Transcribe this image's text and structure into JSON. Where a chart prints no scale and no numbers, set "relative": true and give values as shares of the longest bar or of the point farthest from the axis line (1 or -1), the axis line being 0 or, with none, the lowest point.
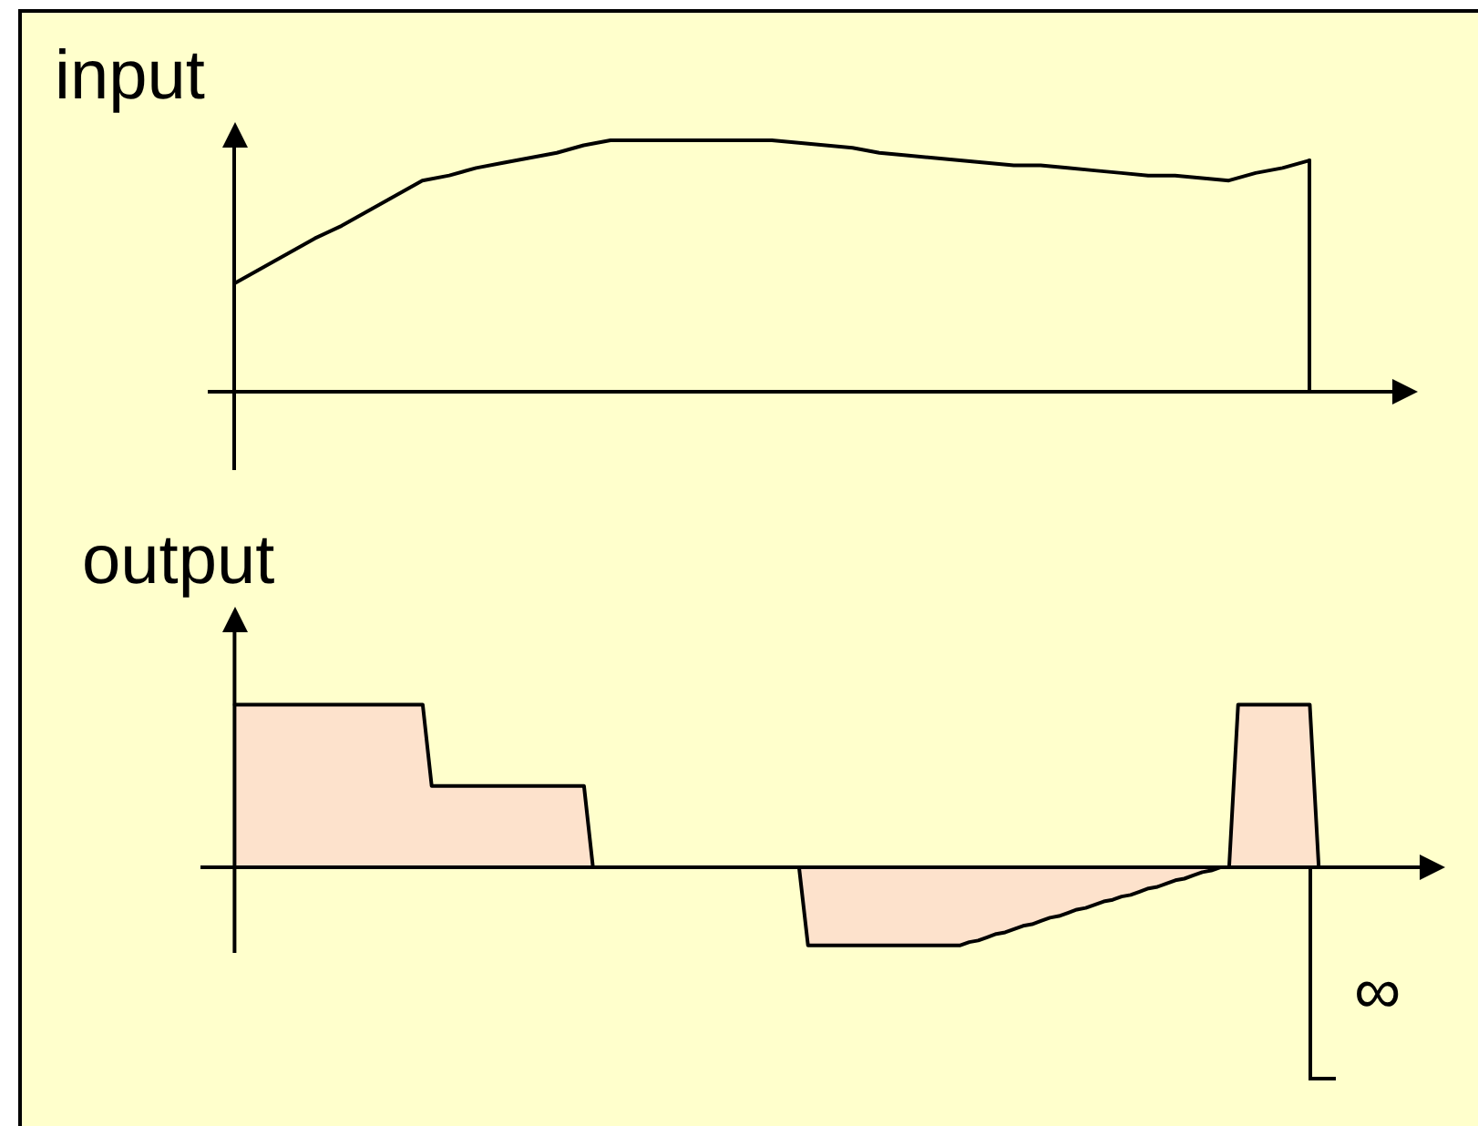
{
  "chart_data": [
    {
      "type": "line",
      "title": "input",
      "relative": true,
      "categories": [
        null,
        null,
        null,
        null,
        null,
        null,
        null,
        null,
        null,
        null,
        null,
        null,
        null,
        null,
        null,
        null,
        null,
        null,
        null,
        null,
        null,
        null,
        null,
        null,
        null,
        null,
        null,
        null,
        null,
        null,
        null,
        null,
        null,
        null,
        null,
        null,
        null,
        null,
        null,
        null,
        null,
        null
      ],
      "series": [
        {
          "color": "#000000",
          "values": [
            0.43,
            0.49,
            0.55,
            0.61,
            0.66,
            0.72,
            0.78,
            0.84,
            0.86,
            0.89,
            0.91,
            0.93,
            0.95,
            0.98,
            1,
            1,
            1,
            1,
            1,
            1,
            1,
            0.99,
            0.98,
            0.97,
            0.95,
            0.94,
            0.93,
            0.92,
            0.91,
            0.9,
            0.9,
            0.89,
            0.88,
            0.87,
            0.86,
            0.86,
            0.85,
            0.84,
            0.87,
            0.89,
            0.92,
            null
          ]
        },
        {
          "type": "step",
          "color": "#000000",
          "values": [
            null,
            null,
            null,
            null,
            null,
            null,
            null,
            null,
            null,
            null,
            null,
            null,
            null,
            null,
            null,
            null,
            null,
            null,
            null,
            null,
            null,
            null,
            null,
            null,
            null,
            null,
            null,
            null,
            null,
            null,
            null,
            null,
            null,
            null,
            null,
            null,
            null,
            null,
            null,
            null,
            0.92,
            0
          ]
        }
      ]
    },
    {
      "type": "area",
      "title": "output",
      "relative": true,
      "annotations": [
        "∞"
      ],
      "categories": [
        null,
        null,
        null,
        null,
        null,
        null,
        null,
        null,
        null,
        null,
        null,
        null,
        null,
        null,
        null,
        null,
        null,
        null,
        null,
        null,
        null,
        null,
        null,
        null,
        null,
        null,
        null,
        null,
        null,
        null,
        null,
        null,
        null,
        null,
        null,
        null,
        null,
        null,
        null,
        null,
        null,
        null,
        null,
        null,
        null,
        null,
        null,
        null,
        null,
        null,
        null,
        null,
        null,
        null,
        null,
        null,
        null,
        null,
        null,
        null,
        null,
        null,
        null,
        null,
        null,
        null,
        null,
        null,
        null,
        null,
        null,
        null,
        null,
        null,
        null,
        null,
        null,
        null,
        null,
        null,
        null,
        null,
        null,
        null,
        null,
        null,
        null,
        null,
        null,
        null,
        null,
        null,
        null,
        null,
        null,
        null,
        null,
        null,
        null,
        null,
        null,
        null,
        null,
        null,
        null,
        null,
        null,
        null,
        null,
        null,
        null,
        null,
        null,
        null,
        null,
        null,
        null,
        null,
        null,
        null,
        null,
        null
      ],
      "series": [
        {
          "color": "#fde2cc",
          "values": [
            1,
            1,
            1,
            1,
            1,
            1,
            1,
            1,
            1,
            1,
            1,
            1,
            1,
            1,
            1,
            1,
            1,
            1,
            1,
            1,
            1,
            1,
            0.5,
            0.5,
            0.5,
            0.5,
            0.5,
            0.5,
            0.5,
            0.5,
            0.5,
            0.5,
            0.5,
            0.5,
            0.5,
            0.5,
            0.5,
            0.5,
            0.5,
            0.5,
            0,
            0,
            0,
            0,
            0,
            0,
            0,
            0,
            0,
            0,
            0,
            0,
            0,
            0,
            0,
            0,
            0,
            0,
            0,
            0,
            0,
            0,
            0,
            0,
            -0.48,
            -0.48,
            -0.48,
            -0.48,
            -0.48,
            -0.48,
            -0.48,
            -0.48,
            -0.48,
            -0.48,
            -0.48,
            -0.48,
            -0.48,
            -0.48,
            -0.48,
            -0.48,
            -0.48,
            -0.48,
            -0.46,
            -0.45,
            -0.43,
            -0.41,
            -0.4,
            -0.38,
            -0.36,
            -0.35,
            -0.33,
            -0.31,
            -0.3,
            -0.28,
            -0.26,
            -0.25,
            -0.23,
            -0.21,
            -0.2,
            -0.18,
            -0.17,
            -0.15,
            -0.13,
            -0.12,
            -0.1,
            -0.08,
            -0.07,
            -0.05,
            -0.03,
            -0.02,
            0,
            0,
            1,
            1,
            1,
            1,
            1,
            1,
            1,
            1,
            1,
            0
          ]
        }
      ]
    }
  ]
}
